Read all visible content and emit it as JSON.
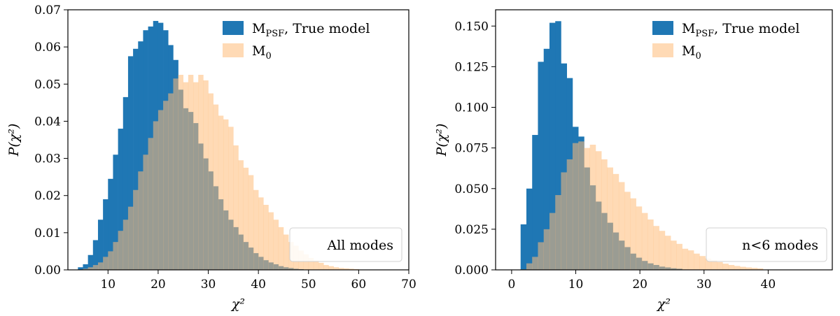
{
  "colors": {
    "series1": "#1f77b4",
    "series2": "#ffbb78",
    "overlap": "#8c7a61"
  },
  "chart_data": [
    {
      "type": "bar",
      "xlabel": "χ²",
      "ylabel": "P(χ²)",
      "xlim": [
        2,
        70
      ],
      "ylim": [
        0,
        0.07
      ],
      "xticks": [
        "10",
        "20",
        "30",
        "40",
        "50",
        "60",
        "70"
      ],
      "yticks": [
        "0.00",
        "0.01",
        "0.02",
        "0.03",
        "0.04",
        "0.05",
        "0.06",
        "0.07"
      ],
      "legend_position": "top-right",
      "annotation": "All modes",
      "bin_start": 4,
      "bin_width": 1.0,
      "series": [
        {
          "name": "M_PSF, True model",
          "legend_main": "M",
          "legend_sub": "PSF",
          "legend_tail": ", True model",
          "values": [
            0.0007,
            0.0015,
            0.004,
            0.008,
            0.0135,
            0.019,
            0.0245,
            0.031,
            0.038,
            0.0465,
            0.0575,
            0.0595,
            0.0615,
            0.0645,
            0.0655,
            0.067,
            0.0665,
            0.0645,
            0.0605,
            0.0565,
            0.0485,
            0.0435,
            0.0425,
            0.0395,
            0.034,
            0.03,
            0.0265,
            0.0225,
            0.019,
            0.016,
            0.0135,
            0.0115,
            0.0095,
            0.0075,
            0.006,
            0.0045,
            0.0035,
            0.0026,
            0.002,
            0.0015,
            0.001,
            0.0007,
            0.0005,
            0.0003,
            0.0002
          ]
        },
        {
          "name": "M_0",
          "legend_main": "M",
          "legend_sub": "0",
          "legend_tail": "",
          "values": [
            0.0001,
            0.0003,
            0.0007,
            0.0013,
            0.002,
            0.0035,
            0.005,
            0.0075,
            0.0105,
            0.0135,
            0.017,
            0.0215,
            0.0265,
            0.031,
            0.0355,
            0.04,
            0.043,
            0.0455,
            0.0475,
            0.0515,
            0.0525,
            0.0505,
            0.0525,
            0.0505,
            0.0525,
            0.051,
            0.0475,
            0.0445,
            0.0415,
            0.0405,
            0.0385,
            0.0335,
            0.0295,
            0.0275,
            0.0255,
            0.0215,
            0.0195,
            0.0175,
            0.0155,
            0.0135,
            0.0115,
            0.0095,
            0.0075,
            0.0065,
            0.0052,
            0.0042,
            0.0032,
            0.0025,
            0.0019,
            0.0013,
            0.001,
            0.0007,
            0.0005,
            0.0004,
            0.0003,
            0.0002
          ]
        }
      ]
    },
    {
      "type": "bar",
      "xlabel": "χ²",
      "ylabel": "P(χ²)",
      "xlim": [
        -2.5,
        50
      ],
      "ylim": [
        0,
        0.16
      ],
      "xticks": [
        "0",
        "10",
        "20",
        "30",
        "40"
      ],
      "yticks": [
        "0.000",
        "0.025",
        "0.050",
        "0.075",
        "0.100",
        "0.125",
        "0.150"
      ],
      "legend_position": "top-right",
      "annotation": "n<6 modes",
      "bin_start": 0.5,
      "bin_width": 0.9,
      "series": [
        {
          "name": "M_PSF, True model",
          "legend_main": "M",
          "legend_sub": "PSF",
          "legend_tail": ", True model",
          "values": [
            0.0,
            0.028,
            0.05,
            0.083,
            0.128,
            0.136,
            0.152,
            0.153,
            0.127,
            0.118,
            0.088,
            0.082,
            0.063,
            0.052,
            0.042,
            0.035,
            0.029,
            0.023,
            0.018,
            0.014,
            0.01,
            0.0075,
            0.0055,
            0.004,
            0.003,
            0.002,
            0.0015,
            0.001,
            0.0007
          ]
        },
        {
          "name": "M_0",
          "legend_main": "M",
          "legend_sub": "0",
          "legend_tail": "",
          "values": [
            0.0,
            0.0003,
            0.004,
            0.008,
            0.017,
            0.025,
            0.035,
            0.046,
            0.06,
            0.068,
            0.078,
            0.079,
            0.075,
            0.077,
            0.073,
            0.068,
            0.063,
            0.059,
            0.054,
            0.048,
            0.044,
            0.039,
            0.035,
            0.031,
            0.027,
            0.024,
            0.021,
            0.018,
            0.016,
            0.013,
            0.012,
            0.01,
            0.0085,
            0.007,
            0.006,
            0.0048,
            0.0038,
            0.003,
            0.0024,
            0.0019,
            0.0015,
            0.0012,
            0.0009
          ]
        }
      ]
    }
  ]
}
